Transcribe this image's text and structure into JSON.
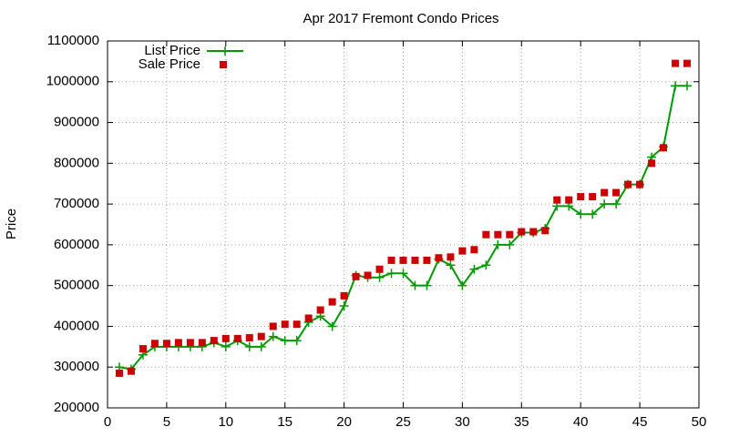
{
  "chart_data": {
    "type": "line",
    "title": "Apr 2017 Fremont Condo Prices",
    "y_label": "Price",
    "x": [
      1,
      2,
      3,
      4,
      5,
      6,
      7,
      8,
      9,
      10,
      11,
      12,
      13,
      14,
      15,
      16,
      17,
      18,
      19,
      20,
      21,
      22,
      23,
      24,
      25,
      26,
      27,
      28,
      29,
      30,
      31,
      32,
      33,
      34,
      35,
      36,
      37,
      38,
      39,
      40,
      41,
      42,
      43,
      44,
      45,
      46,
      47,
      48,
      49
    ],
    "series": [
      {
        "name": "List Price",
        "color": "#009900",
        "style": "linespoints",
        "values": [
          300000,
          295000,
          330000,
          350000,
          350000,
          350000,
          350000,
          350000,
          360000,
          350000,
          365000,
          350000,
          350000,
          375000,
          365000,
          365000,
          410000,
          425000,
          400000,
          450000,
          525000,
          520000,
          520000,
          530000,
          530000,
          500000,
          500000,
          565000,
          550000,
          500000,
          540000,
          550000,
          600000,
          600000,
          630000,
          630000,
          640000,
          695000,
          695000,
          675000,
          675000,
          700000,
          700000,
          748000,
          748000,
          815000,
          840000,
          990000,
          990000
        ]
      },
      {
        "name": "Sale Price",
        "color": "#cc0000",
        "style": "points",
        "values": [
          285000,
          290000,
          345000,
          358000,
          358000,
          360000,
          360000,
          360000,
          365000,
          370000,
          370000,
          372000,
          375000,
          400000,
          405000,
          405000,
          420000,
          440000,
          460000,
          475000,
          522000,
          525000,
          540000,
          562000,
          562000,
          562000,
          562000,
          568000,
          570000,
          585000,
          588000,
          625000,
          625000,
          625000,
          632000,
          632000,
          635000,
          710000,
          710000,
          718000,
          718000,
          728000,
          728000,
          748000,
          748000,
          800000,
          838000,
          1045000,
          1045000
        ]
      }
    ],
    "xlim": [
      0,
      50
    ],
    "xticks": [
      0,
      5,
      10,
      15,
      20,
      25,
      30,
      35,
      40,
      45,
      50
    ],
    "ylim": [
      200000,
      1100000
    ],
    "yticks": [
      200000,
      300000,
      400000,
      500000,
      600000,
      700000,
      800000,
      900000,
      1000000,
      1100000
    ],
    "grid": true,
    "legend": "top-left"
  }
}
